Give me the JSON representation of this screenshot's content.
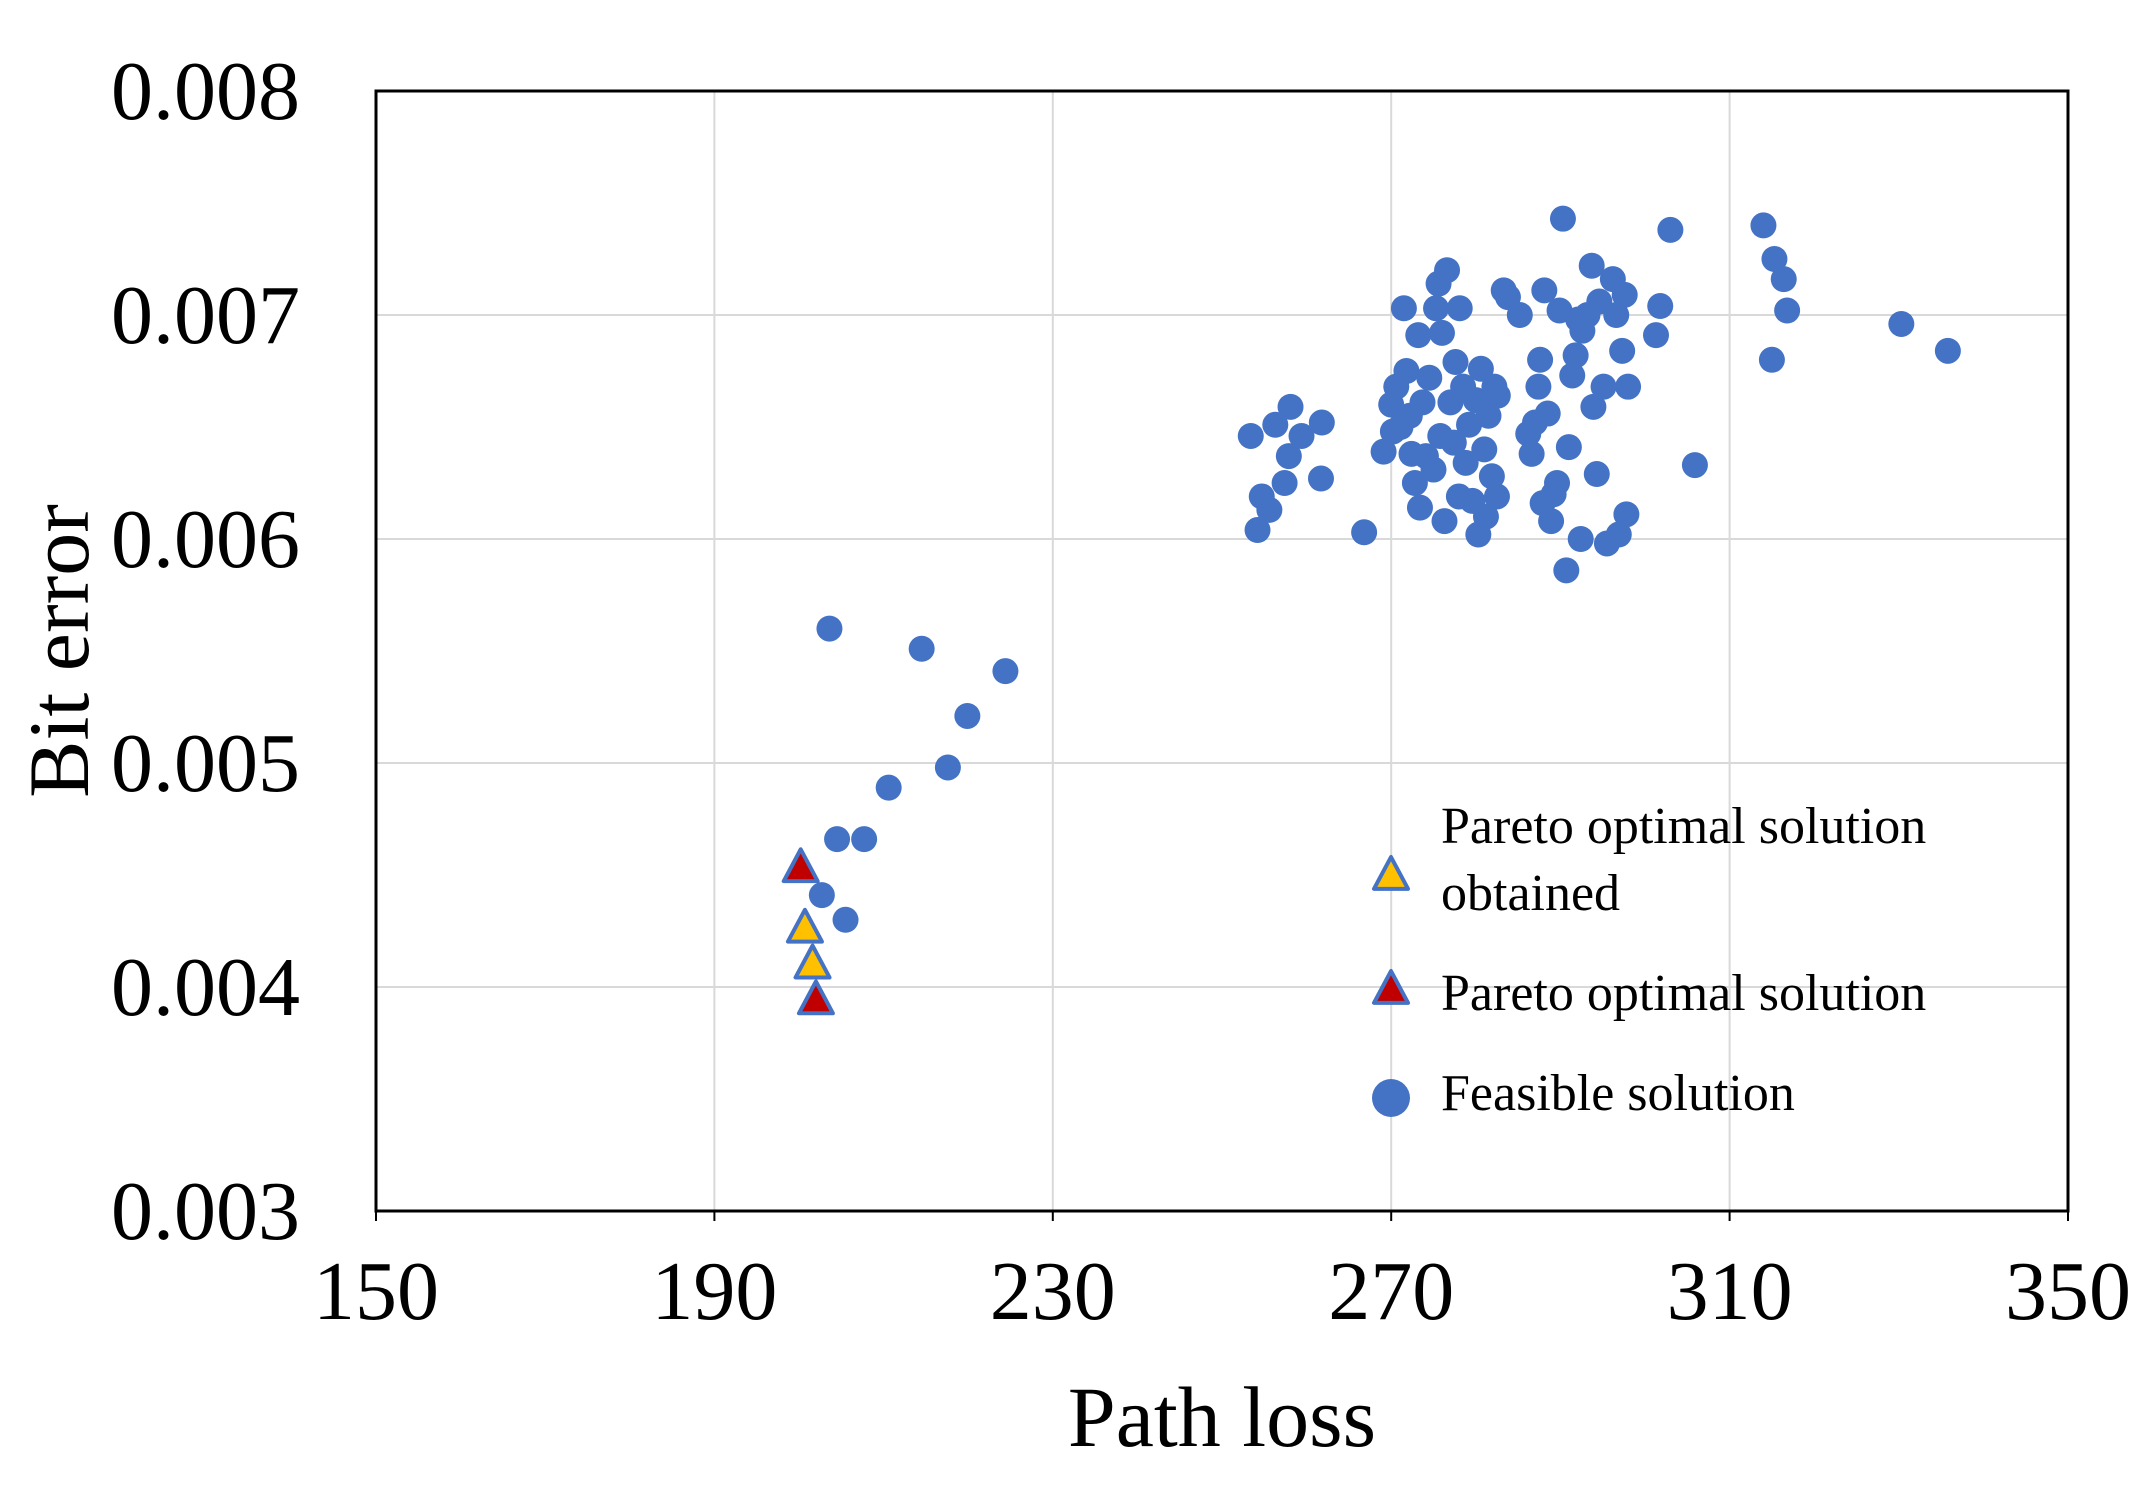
{
  "chart_data": {
    "type": "scatter",
    "title": "",
    "xlabel": "Path loss",
    "ylabel": "Bit error",
    "xlim": [
      150,
      350
    ],
    "ylim": [
      0.003,
      0.008
    ],
    "xticks": [
      150,
      190,
      230,
      270,
      310,
      350
    ],
    "xtick_labels": [
      "150",
      "190",
      "230",
      "270",
      "310",
      "350"
    ],
    "yticks": [
      0.003,
      0.004,
      0.005,
      0.006,
      0.007,
      0.008
    ],
    "ytick_labels": [
      "0.003",
      "0.004",
      "0.005",
      "0.006",
      "0.007",
      "0.008"
    ],
    "grid": true,
    "legend_position": "bottom-right, inside plot",
    "series": [
      {
        "name": "Pareto optimal solution obtained",
        "legend_lines": [
          "Pareto optimal solution",
          "obtained"
        ],
        "marker": "triangle",
        "fill_color": "#FFC000",
        "edge_color": "#4472C4",
        "points": [
          [
            200.7,
            0.00426
          ],
          [
            201.6,
            0.0041
          ]
        ]
      },
      {
        "name": "Pareto optimal solution",
        "legend_lines": [
          "Pareto optimal solution"
        ],
        "marker": "triangle",
        "fill_color": "#C00000",
        "edge_color": "#4472C4",
        "points": [
          [
            200.2,
            0.00453
          ],
          [
            202.0,
            0.00394
          ]
        ]
      },
      {
        "name": "Feasible solution",
        "legend_lines": [
          "Feasible solution"
        ],
        "marker": "circle",
        "fill_color": "#4472C4",
        "edge_color": "#4472C4",
        "points": [
          [
            203.6,
            0.0056
          ],
          [
            204.5,
            0.00466
          ],
          [
            205.5,
            0.0043
          ],
          [
            207.7,
            0.00466
          ],
          [
            210.6,
            0.00489
          ],
          [
            214.5,
            0.00551
          ],
          [
            217.6,
            0.00498
          ],
          [
            219.9,
            0.00521
          ],
          [
            224.4,
            0.00541
          ],
          [
            202.7,
            0.00441
          ],
          [
            253.4,
            0.00646
          ],
          [
            254.2,
            0.00604
          ],
          [
            254.7,
            0.00619
          ],
          [
            255.6,
            0.00613
          ],
          [
            256.3,
            0.00651
          ],
          [
            257.4,
            0.00625
          ],
          [
            257.9,
            0.00637
          ],
          [
            258.1,
            0.00659
          ],
          [
            259.4,
            0.00646
          ],
          [
            261.7,
            0.00627
          ],
          [
            261.8,
            0.00652
          ],
          [
            266.8,
            0.00603
          ],
          [
            269.1,
            0.00639
          ],
          [
            270.0,
            0.0066
          ],
          [
            270.2,
            0.00648
          ],
          [
            270.6,
            0.00668
          ],
          [
            271.1,
            0.0065
          ],
          [
            271.5,
            0.00703
          ],
          [
            271.8,
            0.00675
          ],
          [
            272.2,
            0.00655
          ],
          [
            272.4,
            0.00638
          ],
          [
            272.8,
            0.00625
          ],
          [
            273.2,
            0.00691
          ],
          [
            273.4,
            0.00614
          ],
          [
            273.7,
            0.00661
          ],
          [
            274.1,
            0.00637
          ],
          [
            274.5,
            0.00672
          ],
          [
            275.0,
            0.00631
          ],
          [
            275.3,
            0.00703
          ],
          [
            275.6,
            0.00714
          ],
          [
            275.8,
            0.00646
          ],
          [
            276.0,
            0.00692
          ],
          [
            276.3,
            0.00608
          ],
          [
            276.6,
            0.0072
          ],
          [
            277.0,
            0.00661
          ],
          [
            277.4,
            0.00643
          ],
          [
            277.6,
            0.00679
          ],
          [
            278.0,
            0.00619
          ],
          [
            278.1,
            0.00703
          ],
          [
            278.5,
            0.00668
          ],
          [
            278.8,
            0.00634
          ],
          [
            279.2,
            0.00651
          ],
          [
            279.6,
            0.00617
          ],
          [
            280.0,
            0.00662
          ],
          [
            280.3,
            0.00602
          ],
          [
            280.6,
            0.00676
          ],
          [
            281.0,
            0.0064
          ],
          [
            281.2,
            0.0061
          ],
          [
            281.5,
            0.00655
          ],
          [
            281.9,
            0.00628
          ],
          [
            282.2,
            0.00668
          ],
          [
            282.5,
            0.00619
          ],
          [
            282.6,
            0.00664
          ],
          [
            283.3,
            0.00711
          ],
          [
            283.8,
            0.00708
          ],
          [
            285.2,
            0.007
          ],
          [
            286.2,
            0.00647
          ],
          [
            286.6,
            0.00638
          ],
          [
            287.0,
            0.00652
          ],
          [
            287.4,
            0.00668
          ],
          [
            287.6,
            0.0068
          ],
          [
            287.9,
            0.00616
          ],
          [
            288.1,
            0.00711
          ],
          [
            288.5,
            0.00656
          ],
          [
            288.9,
            0.00608
          ],
          [
            289.2,
            0.0062
          ],
          [
            289.6,
            0.00625
          ],
          [
            289.9,
            0.00702
          ],
          [
            290.3,
            0.00743
          ],
          [
            290.7,
            0.00586
          ],
          [
            291.0,
            0.00641
          ],
          [
            291.4,
            0.00673
          ],
          [
            291.8,
            0.00682
          ],
          [
            292.1,
            0.00698
          ],
          [
            292.4,
            0.006
          ],
          [
            292.6,
            0.00693
          ],
          [
            293.2,
            0.007
          ],
          [
            293.7,
            0.00722
          ],
          [
            293.9,
            0.00659
          ],
          [
            294.3,
            0.00629
          ],
          [
            294.6,
            0.00706
          ],
          [
            295.1,
            0.00668
          ],
          [
            295.5,
            0.00598
          ],
          [
            296.2,
            0.00716
          ],
          [
            296.6,
            0.007
          ],
          [
            296.9,
            0.00602
          ],
          [
            297.3,
            0.00684
          ],
          [
            297.6,
            0.00709
          ],
          [
            297.8,
            0.00611
          ],
          [
            298.0,
            0.00668
          ],
          [
            301.3,
            0.00691
          ],
          [
            301.8,
            0.00704
          ],
          [
            303.0,
            0.00738
          ],
          [
            305.9,
            0.00633
          ],
          [
            314.0,
            0.0074
          ],
          [
            315.0,
            0.0068
          ],
          [
            315.3,
            0.00725
          ],
          [
            316.4,
            0.00716
          ],
          [
            316.8,
            0.00702
          ],
          [
            330.3,
            0.00696
          ],
          [
            335.8,
            0.00684
          ]
        ]
      }
    ]
  }
}
